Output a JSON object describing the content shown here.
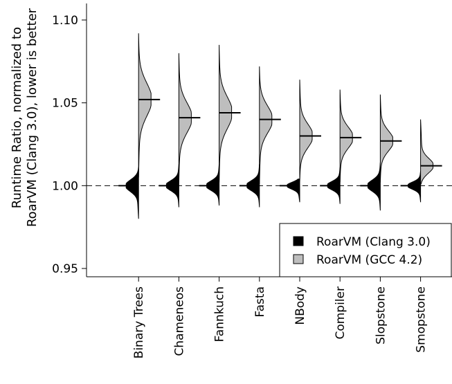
{
  "chart_data": {
    "type": "violin",
    "ylabel_lines": [
      "Runtime Ratio, normalized to",
      "RoarVM (Clang 3.0), lower is better"
    ],
    "ylim": [
      0.945,
      1.11
    ],
    "yticks": [
      0.95,
      1.0,
      1.05,
      1.1
    ],
    "ytick_labels": [
      "0.95",
      "1.00",
      "1.05",
      "1.10"
    ],
    "reference_line": 1.0,
    "categories": [
      "Binary Trees",
      "Chameneos",
      "Fannkuch",
      "Fasta",
      "NBody",
      "Compiler",
      "Slopstone",
      "Smopstone"
    ],
    "series": [
      {
        "name": "RoarVM (Clang 3.0)",
        "fill": "#000000",
        "medians": [
          1.0,
          1.0,
          1.0,
          1.0,
          1.0,
          1.0,
          1.0,
          1.0
        ],
        "ranges": [
          [
            0.98,
            1.011
          ],
          [
            0.987,
            1.013
          ],
          [
            0.988,
            1.013
          ],
          [
            0.987,
            1.013
          ],
          [
            0.99,
            1.004
          ],
          [
            0.989,
            1.011
          ],
          [
            0.985,
            1.014
          ],
          [
            0.99,
            1.009
          ]
        ]
      },
      {
        "name": "RoarVM (GCC 4.2)",
        "fill": "#bebebe",
        "medians": [
          1.052,
          1.041,
          1.044,
          1.04,
          1.03,
          1.029,
          1.027,
          1.012
        ],
        "ranges": [
          [
            1.005,
            1.092
          ],
          [
            1.002,
            1.08
          ],
          [
            1.002,
            1.085
          ],
          [
            1.001,
            1.072
          ],
          [
            1.002,
            1.064
          ],
          [
            1.002,
            1.058
          ],
          [
            1.002,
            1.055
          ],
          [
            1.001,
            1.04
          ]
        ]
      }
    ],
    "legend": {
      "placement": "bottom-right",
      "entries": [
        "RoarVM (Clang 3.0)",
        "RoarVM (GCC 4.2)"
      ]
    }
  }
}
